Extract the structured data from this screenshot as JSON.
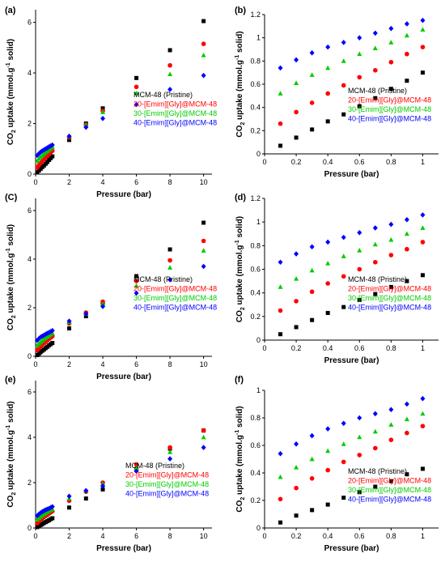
{
  "figure": {
    "ylabel_main": "CO",
    "ylabel_sub": "2",
    "ylabel_rest": " uptake (mmol.g",
    "ylabel_sup": "-1",
    "ylabel_end": " solid)",
    "xlabel": "Pressure (bar)",
    "legend": [
      "MCM-48 (Pristine)",
      "20-[Emim][Gly]@MCM-48",
      "30-[Emim][Gly]@MCM-48",
      "40-[Emim][Gly]@MCM-48"
    ]
  },
  "colors": [
    "#000000",
    "#ff0000",
    "#00cc00",
    "#0000ff"
  ],
  "markers": [
    "square",
    "circle",
    "triangle",
    "diamond"
  ],
  "chart_data": [
    {
      "type": "scatter",
      "panel_label": "(a)",
      "xlabel": "Pressure (bar)",
      "xlim": [
        0,
        10.5
      ],
      "ylim": [
        0,
        6.5
      ],
      "xticks": [
        0,
        2,
        4,
        6,
        8,
        10
      ],
      "yticks": [
        0,
        2,
        4,
        6
      ],
      "legend_position": "lower-right",
      "series": [
        {
          "name": "MCM-48 (Pristine)",
          "x": [
            0.1,
            0.2,
            0.3,
            0.4,
            0.5,
            0.6,
            0.7,
            0.8,
            0.9,
            1,
            2,
            3,
            4,
            6,
            8,
            10
          ],
          "y": [
            0.07,
            0.14,
            0.21,
            0.28,
            0.34,
            0.41,
            0.48,
            0.56,
            0.63,
            0.7,
            1.35,
            2.0,
            2.6,
            3.8,
            4.9,
            6.05
          ]
        },
        {
          "name": "20-[Emim][Gly]@MCM-48",
          "x": [
            0.1,
            0.2,
            0.3,
            0.4,
            0.5,
            0.6,
            0.7,
            0.8,
            0.9,
            1,
            2,
            3,
            4,
            6,
            8,
            10
          ],
          "y": [
            0.26,
            0.36,
            0.44,
            0.52,
            0.59,
            0.66,
            0.72,
            0.79,
            0.86,
            0.92,
            1.45,
            1.95,
            2.5,
            3.45,
            4.3,
            5.15
          ]
        },
        {
          "name": "30-[Emim][Gly]@MCM-48",
          "x": [
            0.1,
            0.2,
            0.3,
            0.4,
            0.5,
            0.6,
            0.7,
            0.8,
            0.9,
            1,
            2,
            3,
            4,
            6,
            8,
            10
          ],
          "y": [
            0.52,
            0.61,
            0.68,
            0.74,
            0.8,
            0.86,
            0.91,
            0.96,
            1.02,
            1.07,
            1.5,
            1.95,
            2.45,
            3.2,
            3.95,
            4.7
          ]
        },
        {
          "name": "40-[Emim][Gly]@MCM-48",
          "x": [
            0.1,
            0.2,
            0.3,
            0.4,
            0.5,
            0.6,
            0.7,
            0.8,
            0.9,
            1,
            2,
            3,
            4,
            6,
            8,
            10
          ],
          "y": [
            0.74,
            0.81,
            0.87,
            0.92,
            0.96,
            1.0,
            1.04,
            1.08,
            1.12,
            1.15,
            1.5,
            1.85,
            2.2,
            2.75,
            3.35,
            3.9
          ]
        }
      ]
    },
    {
      "type": "scatter",
      "panel_label": "(b)",
      "xlabel": "Pressure (bar)",
      "xlim": [
        0,
        1.1
      ],
      "ylim": [
        0,
        1.2
      ],
      "xticks": [
        0,
        0.2,
        0.4,
        0.6,
        0.8,
        1
      ],
      "yticks": [
        0,
        0.2,
        0.4,
        0.6,
        0.8,
        1,
        1.2
      ],
      "legend_position": "lower-right",
      "series": [
        {
          "name": "MCM-48 (Pristine)",
          "x": [
            0.1,
            0.2,
            0.3,
            0.4,
            0.5,
            0.6,
            0.7,
            0.8,
            0.9,
            1
          ],
          "y": [
            0.07,
            0.14,
            0.21,
            0.28,
            0.34,
            0.41,
            0.48,
            0.56,
            0.63,
            0.7
          ]
        },
        {
          "name": "20-[Emim][Gly]@MCM-48",
          "x": [
            0.1,
            0.2,
            0.3,
            0.4,
            0.5,
            0.6,
            0.7,
            0.8,
            0.9,
            1
          ],
          "y": [
            0.26,
            0.36,
            0.44,
            0.52,
            0.59,
            0.66,
            0.72,
            0.79,
            0.86,
            0.92
          ]
        },
        {
          "name": "30-[Emim][Gly]@MCM-48",
          "x": [
            0.1,
            0.2,
            0.3,
            0.4,
            0.5,
            0.6,
            0.7,
            0.8,
            0.9,
            1
          ],
          "y": [
            0.52,
            0.61,
            0.68,
            0.74,
            0.8,
            0.86,
            0.91,
            0.96,
            1.02,
            1.07
          ]
        },
        {
          "name": "40-[Emim][Gly]@MCM-48",
          "x": [
            0.1,
            0.2,
            0.3,
            0.4,
            0.5,
            0.6,
            0.7,
            0.8,
            0.9,
            1
          ],
          "y": [
            0.74,
            0.81,
            0.87,
            0.92,
            0.96,
            1.0,
            1.04,
            1.08,
            1.12,
            1.15
          ]
        }
      ]
    },
    {
      "type": "scatter",
      "panel_label": "(C)",
      "xlabel": "Pressure (bar)",
      "xlim": [
        0,
        10.5
      ],
      "ylim": [
        0,
        6.5
      ],
      "xticks": [
        0,
        2,
        4,
        6,
        8,
        10
      ],
      "yticks": [
        0,
        2,
        4,
        6
      ],
      "legend_position": "lower-right",
      "series": [
        {
          "name": "MCM-48 (Pristine)",
          "x": [
            0.1,
            0.2,
            0.3,
            0.4,
            0.5,
            0.6,
            0.7,
            0.8,
            0.9,
            1,
            2,
            3,
            4,
            6,
            8,
            10
          ],
          "y": [
            0.05,
            0.11,
            0.17,
            0.23,
            0.28,
            0.34,
            0.39,
            0.45,
            0.5,
            0.55,
            1.15,
            1.65,
            2.2,
            3.3,
            4.4,
            5.5
          ]
        },
        {
          "name": "20-[Emim][Gly]@MCM-48",
          "x": [
            0.1,
            0.2,
            0.3,
            0.4,
            0.5,
            0.6,
            0.7,
            0.8,
            0.9,
            1,
            2,
            3,
            4,
            6,
            8,
            10
          ],
          "y": [
            0.25,
            0.33,
            0.41,
            0.48,
            0.54,
            0.6,
            0.66,
            0.72,
            0.77,
            0.83,
            1.35,
            1.8,
            2.25,
            3.1,
            3.95,
            4.75
          ]
        },
        {
          "name": "30-[Emim][Gly]@MCM-48",
          "x": [
            0.1,
            0.2,
            0.3,
            0.4,
            0.5,
            0.6,
            0.7,
            0.8,
            0.9,
            1,
            2,
            3,
            4,
            6,
            8,
            10
          ],
          "y": [
            0.45,
            0.52,
            0.59,
            0.65,
            0.71,
            0.76,
            0.81,
            0.85,
            0.9,
            0.95,
            1.4,
            1.75,
            2.15,
            2.9,
            3.65,
            4.35
          ]
        },
        {
          "name": "40-[Emim][Gly]@MCM-48",
          "x": [
            0.1,
            0.2,
            0.3,
            0.4,
            0.5,
            0.6,
            0.7,
            0.8,
            0.9,
            1,
            2,
            3,
            4,
            6,
            8,
            10
          ],
          "y": [
            0.66,
            0.73,
            0.79,
            0.83,
            0.87,
            0.91,
            0.95,
            0.98,
            1.02,
            1.06,
            1.45,
            1.75,
            2.05,
            2.6,
            3.15,
            3.7
          ]
        }
      ]
    },
    {
      "type": "scatter",
      "panel_label": "(d)",
      "xlabel": "Pressure (bar)",
      "xlim": [
        0,
        1.1
      ],
      "ylim": [
        0,
        1.2
      ],
      "xticks": [
        0,
        0.2,
        0.4,
        0.6,
        0.8,
        1
      ],
      "yticks": [
        0,
        0.2,
        0.4,
        0.6,
        0.8,
        1,
        1.2
      ],
      "legend_position": "lower-right",
      "series": [
        {
          "name": "MCM-48 (Pristine)",
          "x": [
            0.1,
            0.2,
            0.3,
            0.4,
            0.5,
            0.6,
            0.7,
            0.8,
            0.9,
            1
          ],
          "y": [
            0.05,
            0.11,
            0.17,
            0.23,
            0.28,
            0.34,
            0.39,
            0.45,
            0.5,
            0.55
          ]
        },
        {
          "name": "20-[Emim][Gly]@MCM-48",
          "x": [
            0.1,
            0.2,
            0.3,
            0.4,
            0.5,
            0.6,
            0.7,
            0.8,
            0.9,
            1
          ],
          "y": [
            0.25,
            0.33,
            0.41,
            0.48,
            0.54,
            0.6,
            0.66,
            0.72,
            0.77,
            0.83
          ]
        },
        {
          "name": "30-[Emim][Gly]@MCM-48",
          "x": [
            0.1,
            0.2,
            0.3,
            0.4,
            0.5,
            0.6,
            0.7,
            0.8,
            0.9,
            1
          ],
          "y": [
            0.45,
            0.52,
            0.59,
            0.65,
            0.71,
            0.76,
            0.81,
            0.85,
            0.9,
            0.95
          ]
        },
        {
          "name": "40-[Emim][Gly]@MCM-48",
          "x": [
            0.1,
            0.2,
            0.3,
            0.4,
            0.5,
            0.6,
            0.7,
            0.8,
            0.9,
            1
          ],
          "y": [
            0.66,
            0.73,
            0.79,
            0.83,
            0.87,
            0.91,
            0.95,
            0.98,
            1.02,
            1.06
          ]
        }
      ]
    },
    {
      "type": "scatter",
      "panel_label": "(e)",
      "xlabel": "Pressure (bar)",
      "xlim": [
        0,
        10.5
      ],
      "ylim": [
        0,
        6.5
      ],
      "xticks": [
        0,
        2,
        4,
        6,
        8,
        10
      ],
      "yticks": [
        0,
        2,
        4,
        6
      ],
      "legend_position": "lower-right",
      "series": [
        {
          "name": "MCM-48 (Pristine)",
          "x": [
            0.1,
            0.2,
            0.3,
            0.4,
            0.5,
            0.6,
            0.7,
            0.8,
            0.9,
            1,
            2,
            3,
            4,
            6,
            8,
            10
          ],
          "y": [
            0.04,
            0.09,
            0.13,
            0.17,
            0.22,
            0.26,
            0.3,
            0.34,
            0.39,
            0.43,
            0.9,
            1.3,
            1.7,
            2.6,
            3.5,
            4.3
          ]
        },
        {
          "name": "20-[Emim][Gly]@MCM-48",
          "x": [
            0.1,
            0.2,
            0.3,
            0.4,
            0.5,
            0.6,
            0.7,
            0.8,
            0.9,
            1,
            2,
            3,
            4,
            6,
            8,
            10
          ],
          "y": [
            0.21,
            0.29,
            0.36,
            0.42,
            0.48,
            0.53,
            0.58,
            0.64,
            0.69,
            0.74,
            1.2,
            1.6,
            2.0,
            2.8,
            3.55,
            4.3
          ]
        },
        {
          "name": "30-[Emim][Gly]@MCM-48",
          "x": [
            0.1,
            0.2,
            0.3,
            0.4,
            0.5,
            0.6,
            0.7,
            0.8,
            0.9,
            1,
            2,
            3,
            4,
            6,
            8,
            10
          ],
          "y": [
            0.37,
            0.44,
            0.5,
            0.56,
            0.61,
            0.66,
            0.7,
            0.75,
            0.79,
            0.83,
            1.3,
            1.65,
            1.95,
            2.65,
            3.35,
            4.0
          ]
        },
        {
          "name": "40-[Emim][Gly]@MCM-48",
          "x": [
            0.1,
            0.2,
            0.3,
            0.4,
            0.5,
            0.6,
            0.7,
            0.8,
            0.9,
            1,
            2,
            3,
            4,
            6,
            8,
            10
          ],
          "y": [
            0.54,
            0.61,
            0.67,
            0.72,
            0.76,
            0.8,
            0.83,
            0.86,
            0.9,
            0.94,
            1.4,
            1.65,
            1.85,
            2.5,
            3.05,
            3.55
          ]
        }
      ]
    },
    {
      "type": "scatter",
      "panel_label": "(f)",
      "xlabel": "Pressure (bar)",
      "xlim": [
        0,
        1.1
      ],
      "ylim": [
        0,
        1.0
      ],
      "xticks": [
        0,
        0.2,
        0.4,
        0.6,
        0.8,
        1
      ],
      "yticks": [
        0,
        0.2,
        0.4,
        0.6,
        0.8,
        1
      ],
      "legend_position": "lower-right",
      "series": [
        {
          "name": "MCM-48 (Pristine)",
          "x": [
            0.1,
            0.2,
            0.3,
            0.4,
            0.5,
            0.6,
            0.7,
            0.8,
            0.9,
            1
          ],
          "y": [
            0.04,
            0.09,
            0.13,
            0.17,
            0.22,
            0.26,
            0.3,
            0.34,
            0.39,
            0.43
          ]
        },
        {
          "name": "20-[Emim][Gly]@MCM-48",
          "x": [
            0.1,
            0.2,
            0.3,
            0.4,
            0.5,
            0.6,
            0.7,
            0.8,
            0.9,
            1
          ],
          "y": [
            0.21,
            0.29,
            0.36,
            0.42,
            0.48,
            0.53,
            0.58,
            0.64,
            0.69,
            0.74
          ]
        },
        {
          "name": "30-[Emim][Gly]@MCM-48",
          "x": [
            0.1,
            0.2,
            0.3,
            0.4,
            0.5,
            0.6,
            0.7,
            0.8,
            0.9,
            1
          ],
          "y": [
            0.37,
            0.44,
            0.5,
            0.56,
            0.61,
            0.66,
            0.7,
            0.75,
            0.79,
            0.83
          ]
        },
        {
          "name": "40-[Emim][Gly]@MCM-48",
          "x": [
            0.1,
            0.2,
            0.3,
            0.4,
            0.5,
            0.6,
            0.7,
            0.8,
            0.9,
            1
          ],
          "y": [
            0.54,
            0.61,
            0.67,
            0.72,
            0.76,
            0.8,
            0.83,
            0.86,
            0.9,
            0.94
          ]
        }
      ]
    }
  ]
}
